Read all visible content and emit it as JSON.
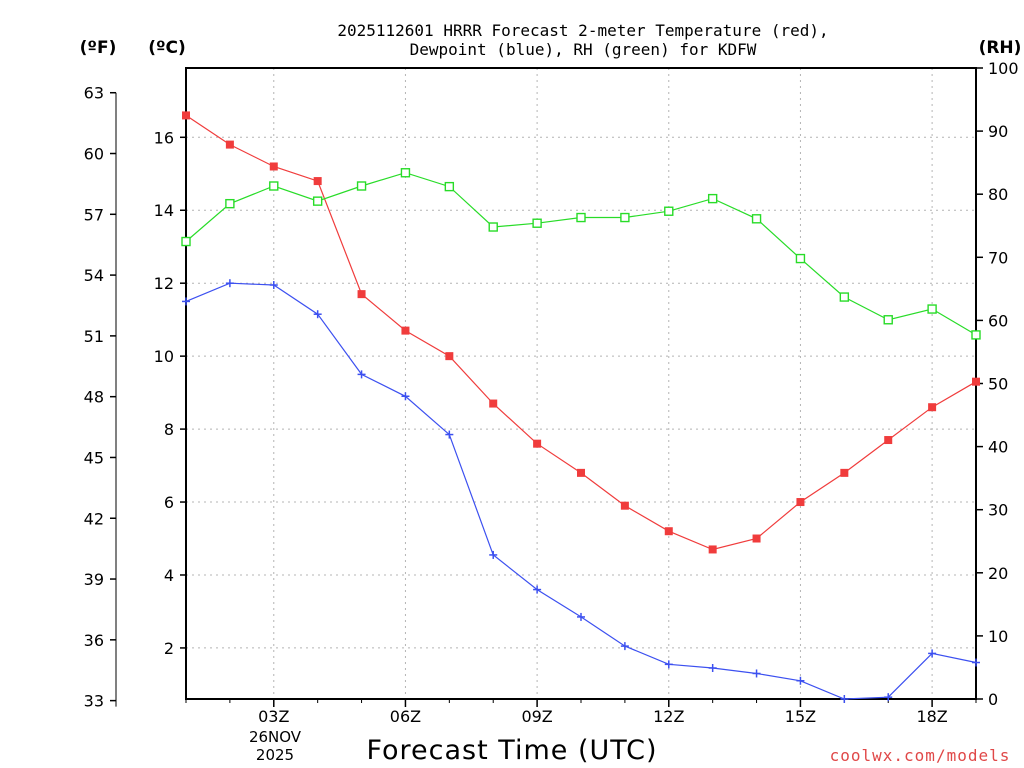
{
  "chart_data": {
    "type": "line",
    "title_line1": "2025112601 HRRR Forecast 2-meter Temperature (red),",
    "title_line2": "Dewpoint (blue), RH (green) for KDFW",
    "xlabel": "Forecast Time (UTC)",
    "units": {
      "fahrenheit": "(ºF)",
      "celsius": "(ºC)",
      "rh": "(RH)"
    },
    "date_label": {
      "day": "26NOV",
      "year": "2025"
    },
    "credit": "coolwx.com/models",
    "x_hours": [
      1,
      2,
      3,
      4,
      5,
      6,
      7,
      8,
      9,
      10,
      11,
      12,
      13,
      14,
      15,
      16,
      17,
      18,
      19
    ],
    "xlim": [
      1,
      19
    ],
    "x_ticks": [
      {
        "hour": 3,
        "label": "03Z"
      },
      {
        "hour": 6,
        "label": "06Z"
      },
      {
        "hour": 9,
        "label": "09Z"
      },
      {
        "hour": 12,
        "label": "12Z"
      },
      {
        "hour": 15,
        "label": "15Z"
      },
      {
        "hour": 18,
        "label": "18Z"
      }
    ],
    "celsius_lim": [
      0.6,
      17.9
    ],
    "celsius_ticks": [
      "2",
      "4",
      "6",
      "8",
      "10",
      "12",
      "14",
      "16"
    ],
    "fahrenheit_ticks": [
      "33",
      "36",
      "39",
      "42",
      "45",
      "48",
      "51",
      "54",
      "57",
      "60",
      "63"
    ],
    "rh_lim": [
      0,
      100
    ],
    "rh_ticks": [
      "0",
      "10",
      "20",
      "30",
      "40",
      "50",
      "60",
      "70",
      "80",
      "90",
      "100"
    ],
    "series": [
      {
        "name": "Temperature",
        "axis": "celsius",
        "color": "#f03c3c",
        "marker": "filled-square",
        "values": [
          16.6,
          15.8,
          15.2,
          14.8,
          11.7,
          10.7,
          10.0,
          8.7,
          7.6,
          6.8,
          5.9,
          5.2,
          4.7,
          5.0,
          6.0,
          6.8,
          7.7,
          8.6,
          9.3
        ]
      },
      {
        "name": "Dewpoint",
        "axis": "celsius",
        "color": "#3c50f0",
        "marker": "plus",
        "values": [
          11.5,
          12.0,
          11.95,
          11.15,
          9.5,
          8.9,
          7.85,
          4.55,
          3.6,
          2.85,
          2.05,
          1.55,
          1.45,
          1.3,
          1.1,
          0.6,
          0.65,
          1.85,
          1.6
        ]
      },
      {
        "name": "RH",
        "axis": "rh",
        "color": "#28dc28",
        "marker": "open-square",
        "values": [
          72.5,
          78.5,
          81.3,
          78.9,
          81.3,
          83.4,
          81.2,
          74.8,
          75.4,
          76.3,
          76.3,
          77.3,
          79.3,
          76.1,
          69.8,
          63.7,
          60.1,
          61.8,
          57.7
        ]
      }
    ]
  }
}
